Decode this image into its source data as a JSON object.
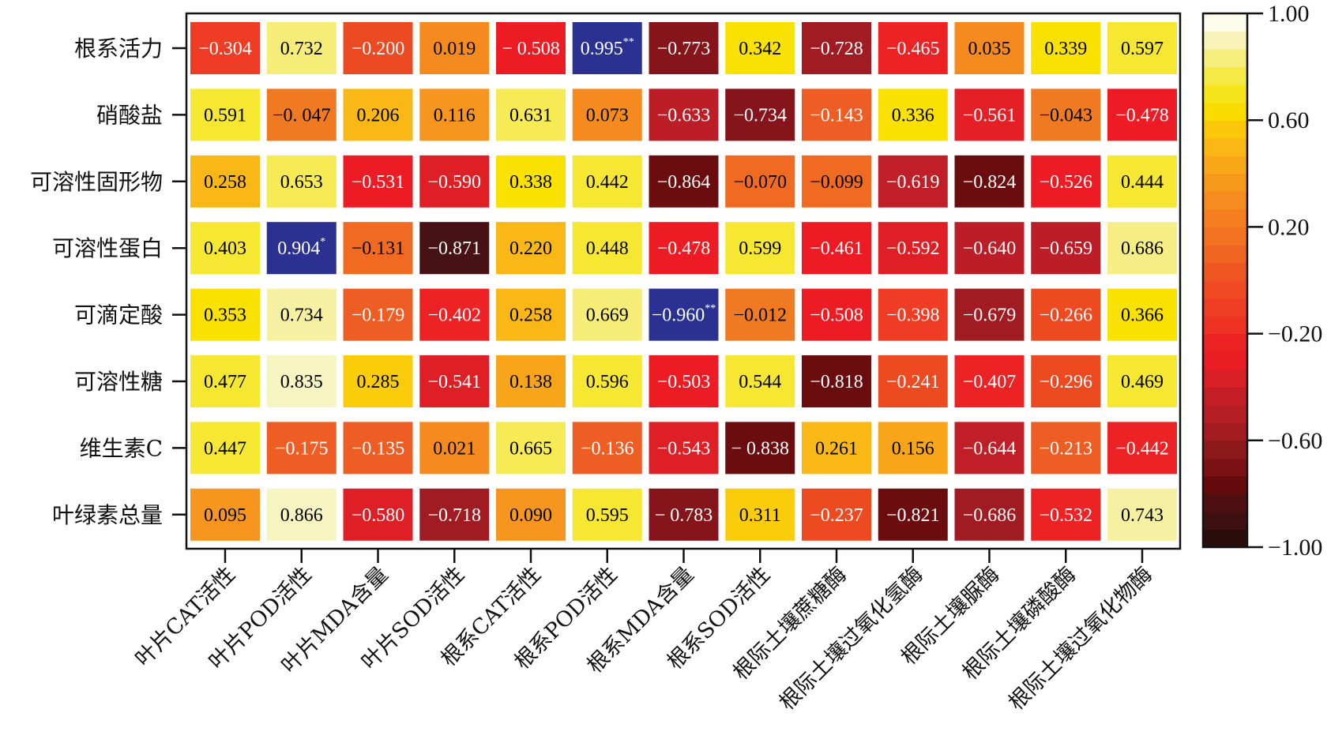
{
  "chart_data": {
    "type": "heatmap",
    "title": "",
    "rows": [
      "根系活力",
      "硝酸盐",
      "可溶性固形物",
      "可溶性蛋白",
      "可滴定酸",
      "可溶性糖",
      "维生素C",
      "叶绿素总量"
    ],
    "columns": [
      "叶片CAT活性",
      "叶片POD活性",
      "叶片MDA含量",
      "叶片SOD活性",
      "根系CAT活性",
      "根系POD活性",
      "根系MDA含量",
      "根系SOD活性",
      "根际土壤蔗糖酶",
      "根际土壤过氧化氢酶",
      "根际土壤脲酶",
      "根际土壤磷酸酶",
      "根际土壤过氧化物酶"
    ],
    "values": [
      [
        -0.304,
        0.732,
        -0.2,
        0.019,
        -0.508,
        0.995,
        -0.773,
        0.342,
        -0.728,
        -0.465,
        0.035,
        0.339,
        0.597
      ],
      [
        0.591,
        -0.047,
        0.206,
        0.116,
        0.631,
        0.073,
        -0.633,
        -0.734,
        -0.143,
        0.336,
        -0.561,
        -0.043,
        -0.478
      ],
      [
        0.258,
        0.653,
        -0.531,
        -0.59,
        0.338,
        0.442,
        -0.864,
        -0.07,
        -0.099,
        -0.619,
        -0.824,
        -0.526,
        0.444
      ],
      [
        0.403,
        0.904,
        -0.131,
        -0.871,
        0.22,
        0.448,
        -0.478,
        0.599,
        -0.461,
        -0.592,
        -0.64,
        -0.659,
        0.686
      ],
      [
        0.353,
        0.734,
        -0.179,
        -0.402,
        0.258,
        0.669,
        -0.96,
        -0.012,
        -0.508,
        -0.398,
        -0.679,
        -0.266,
        0.366
      ],
      [
        0.477,
        0.835,
        0.285,
        -0.541,
        0.138,
        0.596,
        -0.503,
        0.544,
        -0.818,
        -0.241,
        -0.407,
        -0.296,
        0.469
      ],
      [
        0.447,
        -0.175,
        -0.135,
        0.021,
        0.665,
        -0.136,
        -0.543,
        -0.838,
        0.261,
        0.156,
        -0.644,
        -0.213,
        -0.442
      ],
      [
        0.095,
        0.866,
        -0.58,
        -0.718,
        0.09,
        0.595,
        -0.783,
        0.311,
        -0.237,
        -0.821,
        -0.686,
        -0.532,
        0.743
      ]
    ],
    "labels": [
      [
        "−0.304",
        "0.732",
        "−0.200",
        "0.019",
        "− 0.508",
        "0.995",
        "−0.773",
        "0.342",
        "−0.728",
        "−0.465",
        "0.035",
        "0.339",
        "0.597"
      ],
      [
        "0.591",
        "−0. 047",
        "0.206",
        "0.116",
        "0.631",
        "0.073",
        "−0.633",
        "−0.734",
        "−0.143",
        "0.336",
        "−0.561",
        "−0.043",
        "−0.478"
      ],
      [
        "0.258",
        "0.653",
        "−0.531",
        "−0.590",
        "0.338",
        "0.442",
        "−0.864",
        "−0.070",
        "−0.099",
        "−0.619",
        "−0.824",
        "−0.526",
        "0.444"
      ],
      [
        "0.403",
        "0.904",
        "−0.131",
        "−0.871",
        "0.220",
        "0.448",
        "−0.478",
        "0.599",
        "−0.461",
        "−0.592",
        "−0.640",
        "−0.659",
        "0.686"
      ],
      [
        "0.353",
        "0.734",
        "−0.179",
        "−0.402",
        "0.258",
        "0.669",
        "−0.960",
        "−0.012",
        "−0.508",
        "−0.398",
        "−0.679",
        "−0.266",
        "0.366"
      ],
      [
        "0.477",
        "0.835",
        "0.285",
        "−0.541",
        "0.138",
        "0.596",
        "−0.503",
        "0.544",
        "−0.818",
        "−0.241",
        "−0.407",
        "−0.296",
        "0.469"
      ],
      [
        "0.447",
        "−0.175",
        "−0.135",
        "0.021",
        "0.665",
        "−0.136",
        "−0.543",
        "− 0.838",
        "0.261",
        "0.156",
        "−0.644",
        "−0.213",
        "−0.442"
      ],
      [
        "0.095",
        "0.866",
        "−0.580",
        "−0.718",
        "0.090",
        "0.595",
        "− 0.783",
        "0.311",
        "−0.237",
        "−0.821",
        "−0.686",
        "−0.532",
        "0.743"
      ]
    ],
    "significance": [
      [
        "",
        "",
        "",
        "",
        "",
        "**",
        "",
        "",
        "",
        "",
        "",
        "",
        ""
      ],
      [
        "",
        "",
        "",
        "",
        "",
        "",
        "",
        "",
        "",
        "",
        "",
        "",
        ""
      ],
      [
        "",
        "",
        "",
        "",
        "",
        "",
        "",
        "",
        "",
        "",
        "",
        "",
        ""
      ],
      [
        "",
        "*",
        "",
        "",
        "",
        "",
        "",
        "",
        "",
        "",
        "",
        "",
        ""
      ],
      [
        "",
        "",
        "",
        "",
        "",
        "",
        "**",
        "",
        "",
        "",
        "",
        "",
        ""
      ],
      [
        "",
        "",
        "",
        "",
        "",
        "",
        "",
        "",
        "",
        "",
        "",
        "",
        ""
      ],
      [
        "",
        "",
        "",
        "",
        "",
        "",
        "",
        "",
        "",
        "",
        "",
        "",
        ""
      ],
      [
        "",
        "",
        "",
        "",
        "",
        "",
        "",
        "",
        "",
        "",
        "",
        "",
        ""
      ]
    ],
    "cell_colors": [
      [
        "#ee3d24",
        "#f6ec78",
        "#ec4a22",
        "#f58b1f",
        "#ed1c24",
        "#2b3190",
        "#86151b",
        "#f9e102",
        "#a11c22",
        "#ed2224",
        "#f58b1f",
        "#f9e102",
        "#f6e733"
      ],
      [
        "#f6e733",
        "#f07a22",
        "#f9b816",
        "#f6961e",
        "#f6ea55",
        "#f58b1f",
        "#bc1e27",
        "#86151b",
        "#ee5d23",
        "#f9e102",
        "#e41f26",
        "#f07a22",
        "#ed1c24"
      ],
      [
        "#f9b816",
        "#f6ea55",
        "#ed1c24",
        "#de1f26",
        "#f9e102",
        "#f6e733",
        "#6b0c0f",
        "#f06a22",
        "#f06a22",
        "#c01f27",
        "#6b0c0f",
        "#ed1c24",
        "#f6e733"
      ],
      [
        "#f6e733",
        "#2b3190",
        "#f06a22",
        "#471214",
        "#f9b816",
        "#f6e733",
        "#ed1c24",
        "#f6e733",
        "#ed1c24",
        "#de1f26",
        "#bc1e27",
        "#bc1e27",
        "#f6ed84"
      ],
      [
        "#f9e102",
        "#f6f1a2",
        "#ee5d23",
        "#ed2224",
        "#f9b816",
        "#f6ec78",
        "#2b3190",
        "#f07a22",
        "#ed1c24",
        "#ee3d24",
        "#a11c22",
        "#ee4a22",
        "#f9e102"
      ],
      [
        "#f6e733",
        "#f6f5c2",
        "#fbcc0a",
        "#de1f26",
        "#f8a51a",
        "#f6e733",
        "#ed1c24",
        "#f6e733",
        "#6b0c0f",
        "#ee4a22",
        "#ed2224",
        "#ee4a22",
        "#f6e733"
      ],
      [
        "#f6e733",
        "#ee5d23",
        "#ee5d23",
        "#f58b1f",
        "#f6ea55",
        "#ee5d23",
        "#de1f26",
        "#6b0c0f",
        "#f9b816",
        "#f8a51a",
        "#c01f27",
        "#ee5d23",
        "#ed2224"
      ],
      [
        "#f6961e",
        "#f6f5c2",
        "#de1f26",
        "#a11c22",
        "#f6961e",
        "#f6e733",
        "#86151b",
        "#fbcc0a",
        "#ee4a22",
        "#6b0c0f",
        "#a11c22",
        "#ed2224",
        "#f6f1a2"
      ]
    ],
    "text_colors": [
      [
        "#ffffff",
        "#000000",
        "#ffffff",
        "#000000",
        "#ffffff",
        "#ffffff",
        "#ffffff",
        "#000000",
        "#ffffff",
        "#ffffff",
        "#000000",
        "#000000",
        "#000000"
      ],
      [
        "#000000",
        "#000000",
        "#000000",
        "#000000",
        "#000000",
        "#000000",
        "#ffffff",
        "#ffffff",
        "#ffffff",
        "#000000",
        "#ffffff",
        "#000000",
        "#ffffff"
      ],
      [
        "#000000",
        "#000000",
        "#ffffff",
        "#ffffff",
        "#000000",
        "#000000",
        "#ffffff",
        "#000000",
        "#000000",
        "#ffffff",
        "#ffffff",
        "#ffffff",
        "#000000"
      ],
      [
        "#000000",
        "#ffffff",
        "#000000",
        "#ffffff",
        "#000000",
        "#000000",
        "#ffffff",
        "#000000",
        "#ffffff",
        "#ffffff",
        "#ffffff",
        "#ffffff",
        "#000000"
      ],
      [
        "#000000",
        "#000000",
        "#ffffff",
        "#ffffff",
        "#000000",
        "#000000",
        "#ffffff",
        "#000000",
        "#ffffff",
        "#ffffff",
        "#ffffff",
        "#ffffff",
        "#000000"
      ],
      [
        "#000000",
        "#000000",
        "#000000",
        "#ffffff",
        "#000000",
        "#000000",
        "#ffffff",
        "#000000",
        "#ffffff",
        "#ffffff",
        "#ffffff",
        "#ffffff",
        "#000000"
      ],
      [
        "#000000",
        "#ffffff",
        "#ffffff",
        "#000000",
        "#000000",
        "#ffffff",
        "#ffffff",
        "#ffffff",
        "#000000",
        "#000000",
        "#ffffff",
        "#ffffff",
        "#ffffff"
      ],
      [
        "#000000",
        "#000000",
        "#ffffff",
        "#ffffff",
        "#000000",
        "#000000",
        "#ffffff",
        "#000000",
        "#ffffff",
        "#ffffff",
        "#ffffff",
        "#ffffff",
        "#000000"
      ]
    ],
    "colorbar": {
      "range": [
        -1.0,
        1.0
      ],
      "ticks": [
        1.0,
        0.6,
        0.2,
        -0.2,
        -0.6,
        -1.0
      ],
      "tick_labels": [
        "1.00",
        "0.60",
        "0.20",
        "−0.20",
        "−0.60",
        "−1.00"
      ],
      "bands": 30,
      "palette": [
        "#2a0e0e",
        "#3d1012",
        "#4e0f12",
        "#650b0e",
        "#7a1216",
        "#8c1a1c",
        "#a31c22",
        "#b51e25",
        "#c41f27",
        "#d91f26",
        "#ea1d25",
        "#ed2224",
        "#ee3324",
        "#ee3f24",
        "#ef4a22",
        "#ef5722",
        "#f06522",
        "#f27221",
        "#f47e20",
        "#f68b1f",
        "#f7991d",
        "#f9a81a",
        "#fab715",
        "#fbc70a",
        "#f9dc00",
        "#f7e51b",
        "#f5ea45",
        "#f6ee7c",
        "#f8f3b8",
        "#fdfbeb"
      ],
      "location": "right"
    },
    "grid": false
  }
}
